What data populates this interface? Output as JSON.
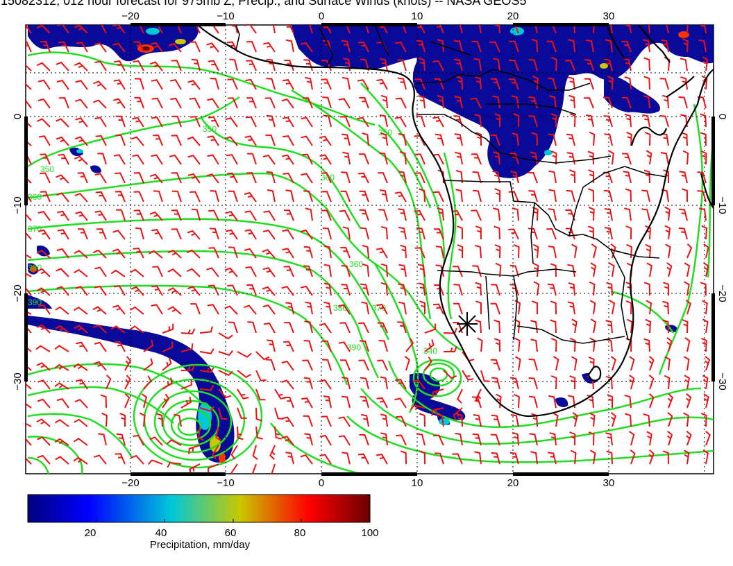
{
  "title": "15082312, 012 hour forecast for 975mb Z, Precip., and Surface Winds (knots) -- NASA GEOS5",
  "map": {
    "lon_ticks": [
      "−20",
      "−10",
      "0",
      "10",
      "20",
      "30"
    ],
    "lat_ticks": [
      "0",
      "−10",
      "−20",
      "−30"
    ],
    "extent": {
      "lon": [
        -31,
        41
      ],
      "lat": [
        -40,
        10
      ]
    },
    "contour_labels": [
      "350",
      "350",
      "360",
      "360",
      "370",
      "380",
      "390",
      "360",
      "370",
      "380",
      "390",
      "340",
      "350"
    ],
    "colors": {
      "contour": "#22dd22",
      "barb": "#ee1111",
      "coast": "#000000",
      "precip": "#0a0a9a"
    },
    "marker": "star-marker"
  },
  "colorbar": {
    "label": "Precipitation, mm/day",
    "ticks": [
      "20",
      "40",
      "60",
      "80",
      "100"
    ],
    "range": [
      0,
      100
    ],
    "colors": [
      "#00007f",
      "#0000ff",
      "#00c8d8",
      "#c8c800",
      "#ff0000",
      "#7f0000"
    ]
  }
}
